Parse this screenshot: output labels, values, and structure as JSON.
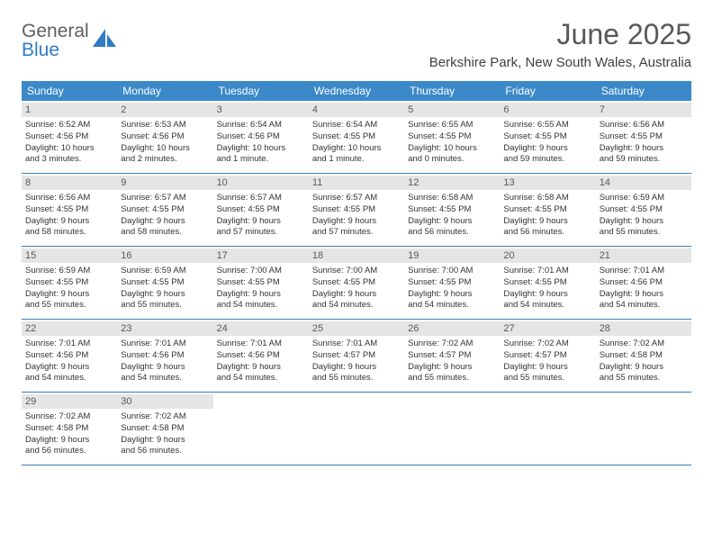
{
  "logo": {
    "line1": "General",
    "line2": "Blue"
  },
  "title": "June 2025",
  "location": "Berkshire Park, New South Wales, Australia",
  "colors": {
    "header_bg": "#3b89c9",
    "header_text": "#ffffff",
    "daynum_bg": "#e5e5e5",
    "daynum_text": "#595959",
    "row_border": "#3b7db8",
    "body_text": "#333333",
    "title_text": "#595959",
    "logo_gray": "#5f5f5f",
    "logo_blue": "#2f7bc4"
  },
  "days_of_week": [
    "Sunday",
    "Monday",
    "Tuesday",
    "Wednesday",
    "Thursday",
    "Friday",
    "Saturday"
  ],
  "weeks": [
    [
      {
        "d": "1",
        "sr": "6:52 AM",
        "ss": "4:56 PM",
        "dl1": "10 hours",
        "dl2": "and 3 minutes."
      },
      {
        "d": "2",
        "sr": "6:53 AM",
        "ss": "4:56 PM",
        "dl1": "10 hours",
        "dl2": "and 2 minutes."
      },
      {
        "d": "3",
        "sr": "6:54 AM",
        "ss": "4:56 PM",
        "dl1": "10 hours",
        "dl2": "and 1 minute."
      },
      {
        "d": "4",
        "sr": "6:54 AM",
        "ss": "4:55 PM",
        "dl1": "10 hours",
        "dl2": "and 1 minute."
      },
      {
        "d": "5",
        "sr": "6:55 AM",
        "ss": "4:55 PM",
        "dl1": "10 hours",
        "dl2": "and 0 minutes."
      },
      {
        "d": "6",
        "sr": "6:55 AM",
        "ss": "4:55 PM",
        "dl1": "9 hours",
        "dl2": "and 59 minutes."
      },
      {
        "d": "7",
        "sr": "6:56 AM",
        "ss": "4:55 PM",
        "dl1": "9 hours",
        "dl2": "and 59 minutes."
      }
    ],
    [
      {
        "d": "8",
        "sr": "6:56 AM",
        "ss": "4:55 PM",
        "dl1": "9 hours",
        "dl2": "and 58 minutes."
      },
      {
        "d": "9",
        "sr": "6:57 AM",
        "ss": "4:55 PM",
        "dl1": "9 hours",
        "dl2": "and 58 minutes."
      },
      {
        "d": "10",
        "sr": "6:57 AM",
        "ss": "4:55 PM",
        "dl1": "9 hours",
        "dl2": "and 57 minutes."
      },
      {
        "d": "11",
        "sr": "6:57 AM",
        "ss": "4:55 PM",
        "dl1": "9 hours",
        "dl2": "and 57 minutes."
      },
      {
        "d": "12",
        "sr": "6:58 AM",
        "ss": "4:55 PM",
        "dl1": "9 hours",
        "dl2": "and 56 minutes."
      },
      {
        "d": "13",
        "sr": "6:58 AM",
        "ss": "4:55 PM",
        "dl1": "9 hours",
        "dl2": "and 56 minutes."
      },
      {
        "d": "14",
        "sr": "6:59 AM",
        "ss": "4:55 PM",
        "dl1": "9 hours",
        "dl2": "and 55 minutes."
      }
    ],
    [
      {
        "d": "15",
        "sr": "6:59 AM",
        "ss": "4:55 PM",
        "dl1": "9 hours",
        "dl2": "and 55 minutes."
      },
      {
        "d": "16",
        "sr": "6:59 AM",
        "ss": "4:55 PM",
        "dl1": "9 hours",
        "dl2": "and 55 minutes."
      },
      {
        "d": "17",
        "sr": "7:00 AM",
        "ss": "4:55 PM",
        "dl1": "9 hours",
        "dl2": "and 54 minutes."
      },
      {
        "d": "18",
        "sr": "7:00 AM",
        "ss": "4:55 PM",
        "dl1": "9 hours",
        "dl2": "and 54 minutes."
      },
      {
        "d": "19",
        "sr": "7:00 AM",
        "ss": "4:55 PM",
        "dl1": "9 hours",
        "dl2": "and 54 minutes."
      },
      {
        "d": "20",
        "sr": "7:01 AM",
        "ss": "4:55 PM",
        "dl1": "9 hours",
        "dl2": "and 54 minutes."
      },
      {
        "d": "21",
        "sr": "7:01 AM",
        "ss": "4:56 PM",
        "dl1": "9 hours",
        "dl2": "and 54 minutes."
      }
    ],
    [
      {
        "d": "22",
        "sr": "7:01 AM",
        "ss": "4:56 PM",
        "dl1": "9 hours",
        "dl2": "and 54 minutes."
      },
      {
        "d": "23",
        "sr": "7:01 AM",
        "ss": "4:56 PM",
        "dl1": "9 hours",
        "dl2": "and 54 minutes."
      },
      {
        "d": "24",
        "sr": "7:01 AM",
        "ss": "4:56 PM",
        "dl1": "9 hours",
        "dl2": "and 54 minutes."
      },
      {
        "d": "25",
        "sr": "7:01 AM",
        "ss": "4:57 PM",
        "dl1": "9 hours",
        "dl2": "and 55 minutes."
      },
      {
        "d": "26",
        "sr": "7:02 AM",
        "ss": "4:57 PM",
        "dl1": "9 hours",
        "dl2": "and 55 minutes."
      },
      {
        "d": "27",
        "sr": "7:02 AM",
        "ss": "4:57 PM",
        "dl1": "9 hours",
        "dl2": "and 55 minutes."
      },
      {
        "d": "28",
        "sr": "7:02 AM",
        "ss": "4:58 PM",
        "dl1": "9 hours",
        "dl2": "and 55 minutes."
      }
    ],
    [
      {
        "d": "29",
        "sr": "7:02 AM",
        "ss": "4:58 PM",
        "dl1": "9 hours",
        "dl2": "and 56 minutes."
      },
      {
        "d": "30",
        "sr": "7:02 AM",
        "ss": "4:58 PM",
        "dl1": "9 hours",
        "dl2": "and 56 minutes."
      },
      null,
      null,
      null,
      null,
      null
    ]
  ],
  "labels": {
    "sunrise": "Sunrise: ",
    "sunset": "Sunset: ",
    "daylight": "Daylight: "
  }
}
